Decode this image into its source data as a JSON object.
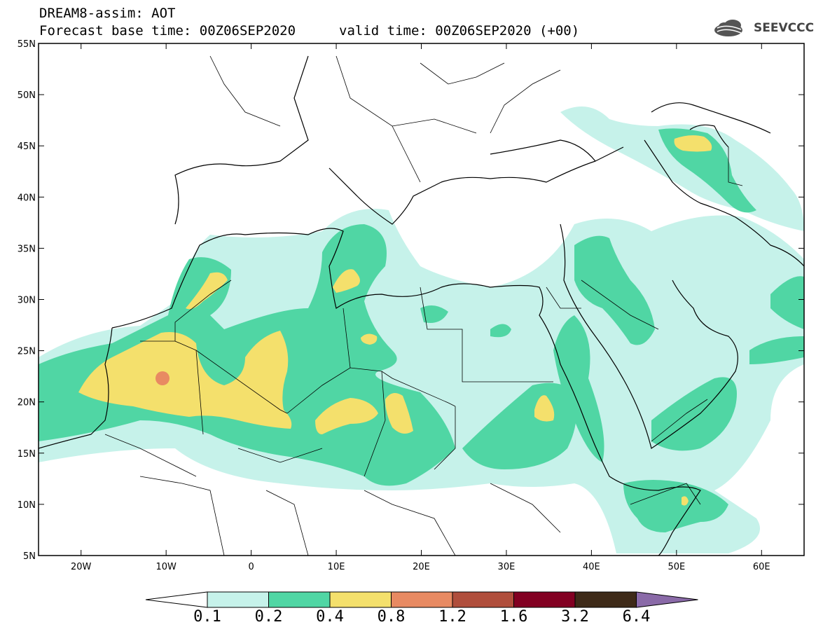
{
  "header": {
    "title": "DREAM8-assim: AOT",
    "base_time": "Forecast base time: 00Z06SEP2020",
    "valid_time": "valid time: 00Z06SEP2020 (+00)",
    "logo_text": "SEEVCCC"
  },
  "map": {
    "lat_labels": [
      "55N",
      "50N",
      "45N",
      "40N",
      "35N",
      "30N",
      "25N",
      "20N",
      "15N",
      "10N",
      "5N"
    ],
    "lon_labels": [
      "20W",
      "10W",
      "0",
      "10E",
      "20E",
      "30E",
      "40E",
      "50E",
      "60E"
    ],
    "lon_range": [
      -25,
      65
    ],
    "lat_range": [
      5,
      55
    ]
  },
  "colorbar": {
    "labels": [
      "0.1",
      "0.2",
      "0.4",
      "0.8",
      "1.2",
      "1.6",
      "3.2",
      "6.4"
    ],
    "colors": [
      "#c6f2ea",
      "#50d6a4",
      "#f4e06c",
      "#e88a62",
      "#b04e3c",
      "#820022",
      "#3e2a18",
      "#8a6aa8"
    ],
    "under_color": "#ffffff"
  }
}
